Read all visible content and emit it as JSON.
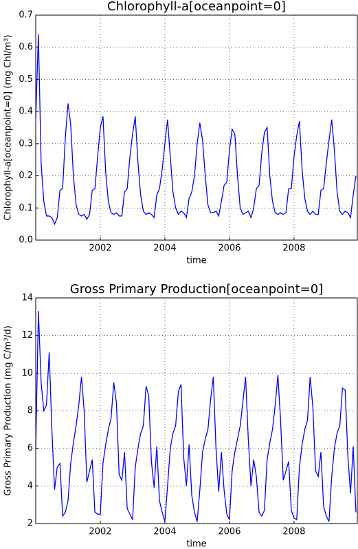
{
  "chart_data": [
    {
      "type": "line",
      "title": "Chlorophyll-a[oceanpoint=0]",
      "xlabel": "time",
      "ylabel": "Chlorophyll-a[oceanpoint=0] (mg Chl/m³)",
      "xlim": [
        2000,
        2009.96
      ],
      "xticks": [
        2002,
        2004,
        2006,
        2008
      ],
      "ylim": [
        0,
        0.7
      ],
      "yticks": [
        {
          "value": 0,
          "label": "0.0"
        },
        0.1,
        0.2,
        0.3,
        0.4,
        0.5,
        0.6,
        0.7
      ],
      "grid": true,
      "x": [
        2000,
        2000.083,
        2000.167,
        2000.25,
        2000.333,
        2000.417,
        2000.5,
        2000.583,
        2000.667,
        2000.75,
        2000.833,
        2000.917,
        2001,
        2001.083,
        2001.167,
        2001.25,
        2001.333,
        2001.417,
        2001.5,
        2001.583,
        2001.667,
        2001.75,
        2001.833,
        2001.917,
        2002,
        2002.083,
        2002.167,
        2002.25,
        2002.333,
        2002.417,
        2002.5,
        2002.583,
        2002.667,
        2002.75,
        2002.833,
        2002.917,
        2003,
        2003.083,
        2003.167,
        2003.25,
        2003.333,
        2003.417,
        2003.5,
        2003.583,
        2003.667,
        2003.75,
        2003.833,
        2003.917,
        2004,
        2004.083,
        2004.167,
        2004.25,
        2004.333,
        2004.417,
        2004.5,
        2004.583,
        2004.667,
        2004.75,
        2004.833,
        2004.917,
        2005,
        2005.083,
        2005.167,
        2005.25,
        2005.333,
        2005.417,
        2005.5,
        2005.583,
        2005.667,
        2005.75,
        2005.833,
        2005.917,
        2006,
        2006.083,
        2006.167,
        2006.25,
        2006.333,
        2006.417,
        2006.5,
        2006.583,
        2006.667,
        2006.75,
        2006.833,
        2006.917,
        2007,
        2007.083,
        2007.167,
        2007.25,
        2007.333,
        2007.417,
        2007.5,
        2007.583,
        2007.667,
        2007.75,
        2007.833,
        2007.917,
        2008,
        2008.083,
        2008.167,
        2008.25,
        2008.333,
        2008.417,
        2008.5,
        2008.583,
        2008.667,
        2008.75,
        2008.833,
        2008.917,
        2009,
        2009.083,
        2009.167,
        2009.25,
        2009.333,
        2009.417,
        2009.5,
        2009.583,
        2009.667,
        2009.75,
        2009.833,
        2009.917
      ],
      "series": [
        {
          "color": "#0000ff",
          "values": [
            0.38,
            0.64,
            0.24,
            0.12,
            0.075,
            0.075,
            0.07,
            0.05,
            0.07,
            0.155,
            0.16,
            0.32,
            0.425,
            0.36,
            0.2,
            0.11,
            0.08,
            0.075,
            0.08,
            0.065,
            0.08,
            0.155,
            0.16,
            0.26,
            0.35,
            0.385,
            0.21,
            0.12,
            0.085,
            0.08,
            0.085,
            0.075,
            0.075,
            0.15,
            0.16,
            0.26,
            0.33,
            0.385,
            0.24,
            0.14,
            0.09,
            0.08,
            0.085,
            0.08,
            0.07,
            0.14,
            0.16,
            0.22,
            0.3,
            0.375,
            0.26,
            0.15,
            0.1,
            0.08,
            0.09,
            0.085,
            0.07,
            0.13,
            0.15,
            0.2,
            0.3,
            0.365,
            0.31,
            0.2,
            0.11,
            0.085,
            0.085,
            0.09,
            0.075,
            0.12,
            0.17,
            0.18,
            0.28,
            0.345,
            0.33,
            0.2,
            0.1,
            0.08,
            0.085,
            0.09,
            0.07,
            0.1,
            0.16,
            0.17,
            0.27,
            0.335,
            0.35,
            0.2,
            0.12,
            0.085,
            0.08,
            0.085,
            0.08,
            0.085,
            0.16,
            0.16,
            0.26,
            0.325,
            0.37,
            0.22,
            0.13,
            0.09,
            0.08,
            0.09,
            0.08,
            0.08,
            0.155,
            0.16,
            0.24,
            0.31,
            0.375,
            0.28,
            0.15,
            0.09,
            0.08,
            0.09,
            0.085,
            0.07,
            0.14,
            0.2
          ]
        }
      ]
    },
    {
      "type": "line",
      "title": "Gross Primary Production[oceanpoint=0]",
      "xlabel": "time",
      "ylabel": "Gross Primary Production (mg C/m³/d)",
      "xlim": [
        2000,
        2009.96
      ],
      "xticks": [
        2002,
        2004,
        2006,
        2008
      ],
      "ylim": [
        2,
        14
      ],
      "yticks": [
        2,
        4,
        6,
        8,
        10,
        12,
        14
      ],
      "grid": true,
      "x": [
        2000,
        2000.083,
        2000.167,
        2000.25,
        2000.333,
        2000.417,
        2000.5,
        2000.583,
        2000.667,
        2000.75,
        2000.833,
        2000.917,
        2001,
        2001.083,
        2001.167,
        2001.25,
        2001.333,
        2001.417,
        2001.5,
        2001.583,
        2001.667,
        2001.75,
        2001.833,
        2001.917,
        2002,
        2002.083,
        2002.167,
        2002.25,
        2002.333,
        2002.417,
        2002.5,
        2002.583,
        2002.667,
        2002.75,
        2002.833,
        2002.917,
        2003,
        2003.083,
        2003.167,
        2003.25,
        2003.333,
        2003.417,
        2003.5,
        2003.583,
        2003.667,
        2003.75,
        2003.833,
        2003.917,
        2004,
        2004.083,
        2004.167,
        2004.25,
        2004.333,
        2004.417,
        2004.5,
        2004.583,
        2004.667,
        2004.75,
        2004.833,
        2004.917,
        2005,
        2005.083,
        2005.167,
        2005.25,
        2005.333,
        2005.417,
        2005.5,
        2005.583,
        2005.667,
        2005.75,
        2005.833,
        2005.917,
        2006,
        2006.083,
        2006.167,
        2006.25,
        2006.333,
        2006.417,
        2006.5,
        2006.583,
        2006.667,
        2006.75,
        2006.833,
        2006.917,
        2007,
        2007.083,
        2007.167,
        2007.25,
        2007.333,
        2007.417,
        2007.5,
        2007.583,
        2007.667,
        2007.75,
        2007.833,
        2007.917,
        2008,
        2008.083,
        2008.167,
        2008.25,
        2008.333,
        2008.417,
        2008.5,
        2008.583,
        2008.667,
        2008.75,
        2008.833,
        2008.917,
        2009,
        2009.083,
        2009.167,
        2009.25,
        2009.333,
        2009.417,
        2009.5,
        2009.583,
        2009.667,
        2009.75,
        2009.833,
        2009.917
      ],
      "series": [
        {
          "color": "#0000ff",
          "values": [
            6.0,
            13.3,
            9.5,
            8.0,
            8.3,
            11.1,
            7.0,
            3.8,
            5.0,
            5.2,
            2.4,
            2.6,
            3.2,
            5.2,
            6.3,
            7.2,
            8.3,
            9.8,
            8.0,
            4.2,
            4.8,
            5.4,
            2.6,
            2.5,
            2.5,
            5.2,
            6.2,
            7.0,
            7.6,
            9.5,
            8.4,
            4.6,
            4.3,
            5.8,
            2.8,
            2.5,
            2.2,
            5.0,
            6.0,
            6.8,
            7.2,
            9.3,
            8.8,
            5.3,
            3.9,
            6.1,
            3.2,
            2.6,
            2.1,
            4.0,
            6.0,
            6.8,
            7.2,
            9.0,
            9.4,
            5.5,
            4.0,
            6.2,
            3.5,
            2.6,
            2.1,
            3.8,
            5.8,
            6.5,
            7.0,
            8.6,
            9.8,
            6.0,
            3.7,
            5.8,
            3.8,
            2.5,
            2.2,
            4.8,
            5.8,
            6.5,
            7.2,
            8.5,
            9.8,
            6.5,
            4.0,
            5.4,
            4.5,
            2.6,
            2.4,
            2.7,
            5.4,
            6.3,
            7.0,
            8.3,
            9.9,
            7.5,
            4.3,
            4.8,
            5.3,
            2.7,
            2.3,
            2.2,
            5.0,
            6.2,
            7.0,
            7.5,
            9.8,
            8.2,
            4.8,
            4.5,
            5.8,
            2.9,
            2.4,
            2.1,
            4.5,
            6.0,
            6.8,
            7.2,
            9.2,
            9.1,
            5.6,
            3.6,
            6.1,
            2.6
          ]
        }
      ]
    }
  ]
}
